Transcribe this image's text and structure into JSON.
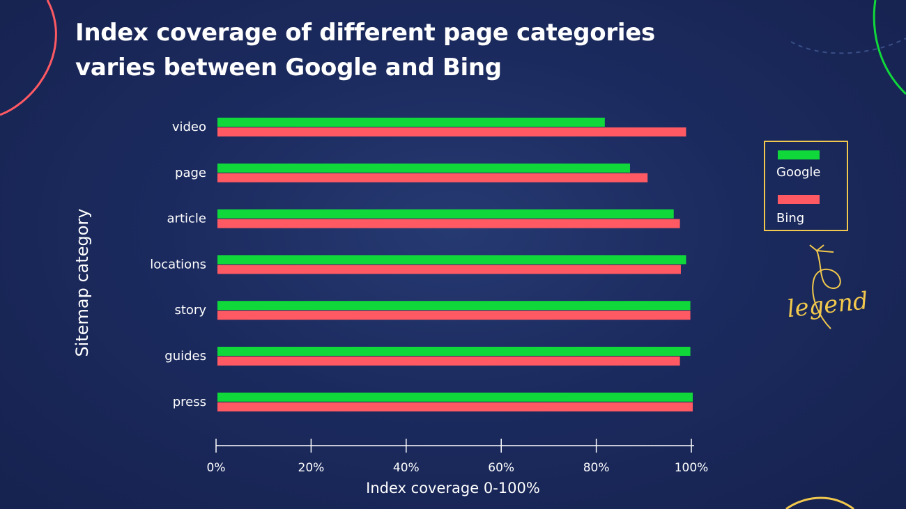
{
  "title_lines": [
    "Index coverage of different page categories",
    "varies between Google and Bing"
  ],
  "legend": {
    "google_label": "Google",
    "bing_label": "Bing",
    "annotation": "legend"
  },
  "colors": {
    "google": "#10d83a",
    "bing": "#ff5a63",
    "legend_border": "#f2c94c",
    "axis": "#ffffff"
  },
  "chart_data": {
    "type": "bar",
    "orientation": "horizontal",
    "categories": [
      "video",
      "page",
      "article",
      "locations",
      "story",
      "guides",
      "press"
    ],
    "series": [
      {
        "name": "Google",
        "values": [
          81.5,
          86.8,
          96,
          98.6,
          99.5,
          99.5,
          100
        ]
      },
      {
        "name": "Bing",
        "values": [
          98.6,
          90.5,
          97.3,
          97.5,
          99.5,
          97.3,
          100
        ]
      }
    ],
    "xlabel": "Index coverage 0-100%",
    "ylabel": "Sitemap category",
    "xlim": [
      0,
      100
    ],
    "xticks": [
      "0%",
      "20%",
      "40%",
      "60%",
      "80%",
      "100%"
    ],
    "grid": false,
    "legend_position": "right"
  }
}
